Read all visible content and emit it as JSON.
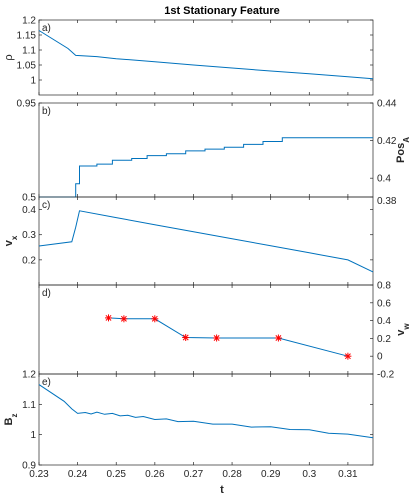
{
  "title": "1st Stationary Feature",
  "xlabel": "t",
  "x_ticks": [
    0.23,
    0.24,
    0.25,
    0.26,
    0.27,
    0.28,
    0.29,
    0.3,
    0.31
  ],
  "colors": {
    "line": "#0072BD",
    "marker": "#FF0000",
    "axis": "#262626"
  },
  "chart_data": [
    {
      "panel": "a)",
      "type": "line",
      "ylabel": "ρ",
      "ylabel_sub": "",
      "ylim": [
        0.95,
        1.2
      ],
      "yticks": [
        "1",
        "1.05",
        "1.1",
        "1.15",
        "1.2"
      ],
      "ytick_values": [
        1,
        1.05,
        1.1,
        1.15,
        1.2
      ],
      "xlim": [
        0.23,
        0.3165
      ],
      "series": [
        {
          "x": [
            0.23,
            0.2375,
            0.2395,
            0.245,
            0.25,
            0.26,
            0.27,
            0.28,
            0.29,
            0.3,
            0.31,
            0.3165
          ],
          "y": [
            1.165,
            1.105,
            1.082,
            1.078,
            1.071,
            1.061,
            1.05,
            1.04,
            1.03,
            1.021,
            1.011,
            1.004
          ]
        }
      ]
    },
    {
      "panel": "b)",
      "type": "line",
      "ylabel": "",
      "right_ylabel": "Pos",
      "right_ylabel_sub": "A",
      "ylim": [
        0.39,
        0.44
      ],
      "yticks_left": [
        "0.5",
        "0.95"
      ],
      "ytick_left_values": [
        0.39,
        0.44
      ],
      "yticks_right": [
        "0.4",
        "0.42",
        "0.44"
      ],
      "ytick_right_values": [
        0.4,
        0.42,
        0.44
      ],
      "xlim": [
        0.23,
        0.3165
      ],
      "series": [
        {
          "x": [
            0.23,
            0.2395,
            0.2395,
            0.2405,
            0.2405,
            0.245,
            0.245,
            0.249,
            0.249,
            0.254,
            0.254,
            0.258,
            0.258,
            0.263,
            0.263,
            0.268,
            0.268,
            0.273,
            0.273,
            0.278,
            0.278,
            0.283,
            0.283,
            0.288,
            0.288,
            0.293,
            0.293,
            0.3165
          ],
          "y": [
            0.39,
            0.39,
            0.397,
            0.397,
            0.4065,
            0.4065,
            0.4075,
            0.4075,
            0.4095,
            0.4095,
            0.4105,
            0.4105,
            0.412,
            0.412,
            0.413,
            0.413,
            0.4145,
            0.4145,
            0.4155,
            0.4155,
            0.4165,
            0.4165,
            0.418,
            0.418,
            0.4195,
            0.4195,
            0.4215,
            0.4215
          ]
        }
      ]
    },
    {
      "panel": "c)",
      "type": "line",
      "ylabel": "v",
      "ylabel_sub": "x",
      "ylim": [
        0.1,
        0.45
      ],
      "yticks": [
        "0.2",
        "0.3",
        "0.4"
      ],
      "ytick_values": [
        0.2,
        0.3,
        0.4
      ],
      "right_ytick_top": "0.38",
      "xlim": [
        0.23,
        0.3165
      ],
      "series": [
        {
          "x": [
            0.23,
            0.2385,
            0.2395,
            0.2405,
            0.25,
            0.26,
            0.27,
            0.28,
            0.29,
            0.3,
            0.31,
            0.3165
          ],
          "y": [
            0.255,
            0.272,
            0.33,
            0.395,
            0.368,
            0.34,
            0.312,
            0.284,
            0.256,
            0.228,
            0.2,
            0.152
          ]
        }
      ]
    },
    {
      "panel": "d)",
      "type": "scatter",
      "right_ylabel": "v",
      "right_ylabel_sub": "w",
      "ylim": [
        -0.2,
        0.8
      ],
      "yticks_right": [
        "-0.2",
        "0",
        "0.2",
        "0.4",
        "0.6",
        "0.8"
      ],
      "ytick_right_values": [
        -0.2,
        0,
        0.2,
        0.4,
        0.6,
        0.8
      ],
      "xlim": [
        0.23,
        0.3165
      ],
      "series": [
        {
          "x": [
            0.248,
            0.252,
            0.26,
            0.268,
            0.276,
            0.292,
            0.31
          ],
          "y": [
            0.43,
            0.42,
            0.42,
            0.21,
            0.205,
            0.205,
            0.0
          ]
        }
      ]
    },
    {
      "panel": "e)",
      "type": "line",
      "ylabel": "B",
      "ylabel_sub": "z",
      "ylim": [
        0.9,
        1.2
      ],
      "yticks": [
        "0.9",
        "1",
        "1.1",
        "1.2"
      ],
      "ytick_values": [
        0.9,
        1.0,
        1.1,
        1.2
      ],
      "xlim": [
        0.23,
        0.3165
      ],
      "series": [
        {
          "x": [
            0.23,
            0.2365,
            0.2385,
            0.24,
            0.242,
            0.2435,
            0.245,
            0.247,
            0.249,
            0.251,
            0.253,
            0.255,
            0.257,
            0.26,
            0.263,
            0.266,
            0.27,
            0.275,
            0.28,
            0.285,
            0.29,
            0.295,
            0.3,
            0.305,
            0.31,
            0.3165
          ],
          "y": [
            1.165,
            1.11,
            1.085,
            1.07,
            1.073,
            1.068,
            1.074,
            1.067,
            1.07,
            1.062,
            1.064,
            1.057,
            1.06,
            1.05,
            1.052,
            1.043,
            1.044,
            1.035,
            1.035,
            1.025,
            1.026,
            1.017,
            1.016,
            1.005,
            1.002,
            0.99
          ]
        }
      ]
    }
  ]
}
